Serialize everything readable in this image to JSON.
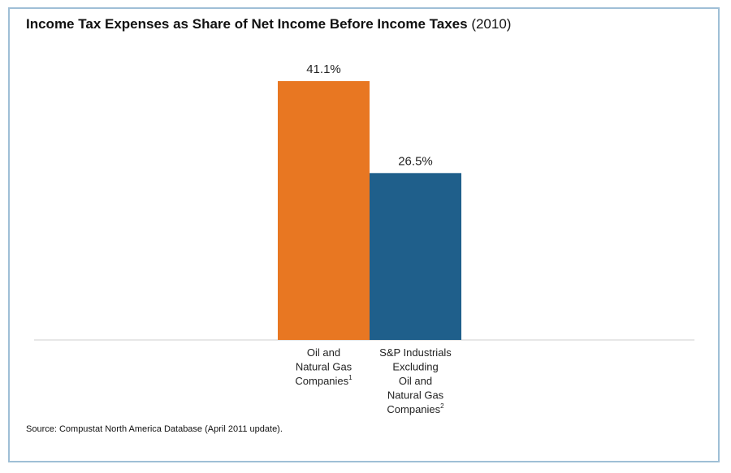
{
  "chart_data": {
    "type": "bar",
    "title": "Income Tax Expenses as Share of Net Income Before Income Taxes",
    "title_suffix": "(2010)",
    "categories": [
      {
        "lines": [
          "Oil and",
          "Natural Gas",
          "Companies"
        ],
        "footnote": "1"
      },
      {
        "lines": [
          "S&P Industrials",
          "Excluding",
          "Oil and",
          "Natural Gas",
          "Companies"
        ],
        "footnote": "2"
      }
    ],
    "values": [
      41.1,
      26.5
    ],
    "value_labels": [
      "41.1%",
      "26.5%"
    ],
    "colors": [
      "#e87722",
      "#1f5f8b"
    ],
    "ylim": [
      0,
      41.1
    ],
    "grid": false,
    "legend": "none"
  },
  "source": "Source: Compustat North America Database (April 2011 update)."
}
